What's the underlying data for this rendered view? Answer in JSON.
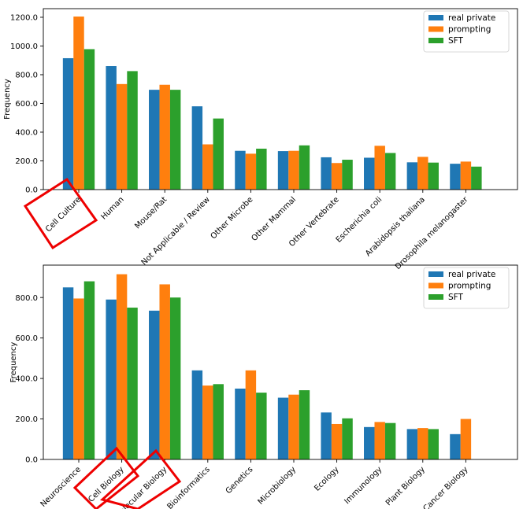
{
  "colors": {
    "real_private": "#1f77b4",
    "prompting": "#ff7f0e",
    "sft": "#2ca02c",
    "highlight": "#ee0000",
    "background": "#ffffff",
    "axis": "#000000"
  },
  "chart_data": [
    {
      "type": "bar",
      "title": "",
      "xlabel": "",
      "ylabel": "Frequency",
      "ylim": [
        0,
        1260
      ],
      "yticks": [
        0,
        200,
        400,
        600,
        800,
        1000,
        1200
      ],
      "ytick_labels": [
        "0.0",
        "200.0",
        "400.0",
        "600.0",
        "800.0",
        "1000.0",
        "1200.0"
      ],
      "legend_position": "top-right",
      "categories": [
        "Cell Culture",
        "Human",
        "Mouse/Rat",
        "Not Applicable / Review",
        "Other Microbe",
        "Other Mammal",
        "Other Vertebrate",
        "Escherichia coli",
        "Arabidopsis thaliana",
        "Drosophila melanogaster"
      ],
      "series": [
        {
          "name": "real private",
          "color_key": "real_private",
          "values": [
            915,
            860,
            695,
            580,
            270,
            268,
            225,
            222,
            190,
            180
          ]
        },
        {
          "name": "prompting",
          "color_key": "prompting",
          "values": [
            1205,
            735,
            730,
            315,
            250,
            270,
            185,
            305,
            228,
            195
          ]
        },
        {
          "name": "SFT",
          "color_key": "sft",
          "values": [
            978,
            825,
            695,
            495,
            285,
            308,
            208,
            255,
            188,
            160
          ]
        }
      ],
      "highlighted_categories": [
        "Cell Culture"
      ]
    },
    {
      "type": "bar",
      "title": "",
      "xlabel": "",
      "ylabel": "Frequency",
      "ylim": [
        0,
        960
      ],
      "yticks": [
        0,
        200,
        400,
        600,
        800
      ],
      "ytick_labels": [
        "0.0",
        "200.0",
        "400.0",
        "600.0",
        "800.0"
      ],
      "legend_position": "top-right",
      "categories": [
        "Neuroscience",
        "Cell Biology",
        "Molecular Biology",
        "Bioinformatics",
        "Genetics",
        "Microbiology",
        "Ecology",
        "Immunology",
        "Plant Biology",
        "Cancer Biology"
      ],
      "series": [
        {
          "name": "real private",
          "color_key": "real_private",
          "values": [
            850,
            790,
            735,
            440,
            350,
            305,
            232,
            160,
            150,
            125
          ]
        },
        {
          "name": "prompting",
          "color_key": "prompting",
          "values": [
            795,
            915,
            865,
            365,
            440,
            320,
            175,
            185,
            155,
            200
          ]
        },
        {
          "name": "SFT",
          "color_key": "sft",
          "values": [
            880,
            750,
            800,
            372,
            330,
            342,
            203,
            180,
            150,
            0
          ]
        }
      ],
      "highlighted_categories": [
        "Cell Biology",
        "Molecular Biology"
      ]
    }
  ]
}
